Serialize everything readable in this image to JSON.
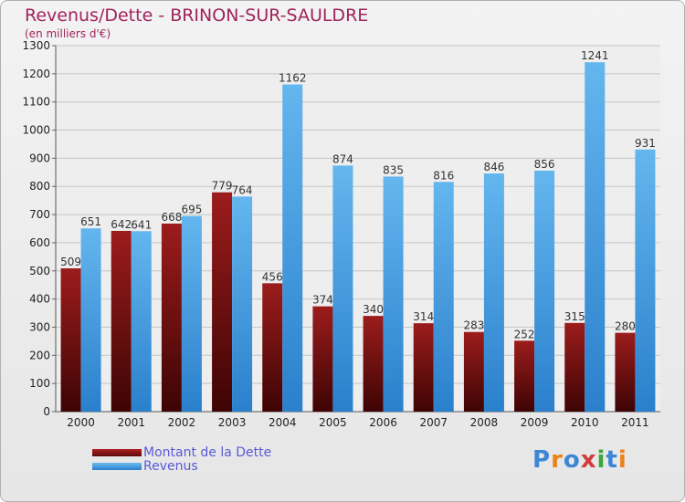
{
  "chart_data": {
    "type": "bar",
    "title": "Revenus/Dette - BRINON-SUR-SAULDRE",
    "subtitle": "(en milliers d'€)",
    "xlabel": "",
    "ylabel": "",
    "categories": [
      "2000",
      "2001",
      "2002",
      "2003",
      "2004",
      "2005",
      "2006",
      "2007",
      "2008",
      "2009",
      "2010",
      "2011"
    ],
    "series": [
      {
        "name": "Montant de la Dette",
        "color": "#7a1010",
        "values": [
          509,
          642,
          668,
          779,
          456,
          374,
          340,
          314,
          283,
          252,
          315,
          280
        ]
      },
      {
        "name": "Revenus",
        "color": "#4ea6e8",
        "values": [
          651,
          641,
          695,
          764,
          1162,
          874,
          835,
          816,
          846,
          856,
          1241,
          931
        ]
      }
    ],
    "ylim": [
      0,
      1300
    ],
    "yticks": [
      0,
      100,
      200,
      300,
      400,
      500,
      600,
      700,
      800,
      900,
      1000,
      1100,
      1200,
      1300
    ],
    "grid": true,
    "legend_position": "bottom-left"
  },
  "branding": {
    "logo_text": "Proxiti",
    "colors": [
      "#3d86d6",
      "#e8841a",
      "#3d86d6",
      "#d23c3c",
      "#3ca63c",
      "#3d86d6",
      "#e8841a"
    ]
  }
}
